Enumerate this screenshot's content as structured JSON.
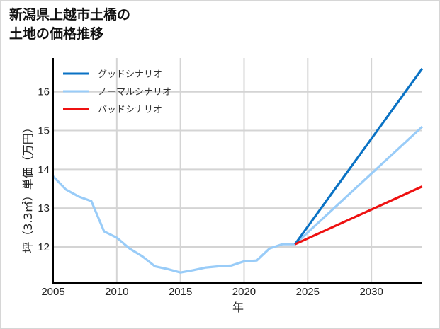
{
  "title_lines": [
    "新潟県上越市土橋の",
    "土地の価格推移"
  ],
  "chart_data": {
    "type": "line",
    "title": "新潟県上越市土橋の土地の価格推移",
    "xlabel": "年",
    "ylabel": "坪（3.3㎡）単価（万円）",
    "xlim": [
      2005,
      2034
    ],
    "ylim": [
      11.07,
      16.87
    ],
    "xticks": [
      2005,
      2010,
      2015,
      2020,
      2025,
      2030
    ],
    "yticks": [
      12,
      13,
      14,
      15,
      16
    ],
    "grid": true,
    "legend_position": "upper left",
    "series": [
      {
        "name": "グッドシナリオ",
        "color": "#0a72c4",
        "x": [
          2024,
          2034
        ],
        "y": [
          12.07,
          16.6
        ]
      },
      {
        "name": "ノーマルシナリオ",
        "color": "#99ccf8",
        "x": [
          2005,
          2006,
          2007,
          2008,
          2009,
          2010,
          2011,
          2012,
          2013,
          2014,
          2015,
          2016,
          2017,
          2018,
          2019,
          2020,
          2021,
          2022,
          2023,
          2024,
          2034
        ],
        "y": [
          13.82,
          13.48,
          13.3,
          13.18,
          12.4,
          12.24,
          11.96,
          11.76,
          11.5,
          11.43,
          11.34,
          11.4,
          11.47,
          11.5,
          11.52,
          11.63,
          11.65,
          11.96,
          12.07,
          12.07,
          15.1
        ]
      },
      {
        "name": "バッドシナリオ",
        "color": "#ee1111",
        "x": [
          2024,
          2034
        ],
        "y": [
          12.07,
          13.56
        ]
      }
    ]
  }
}
